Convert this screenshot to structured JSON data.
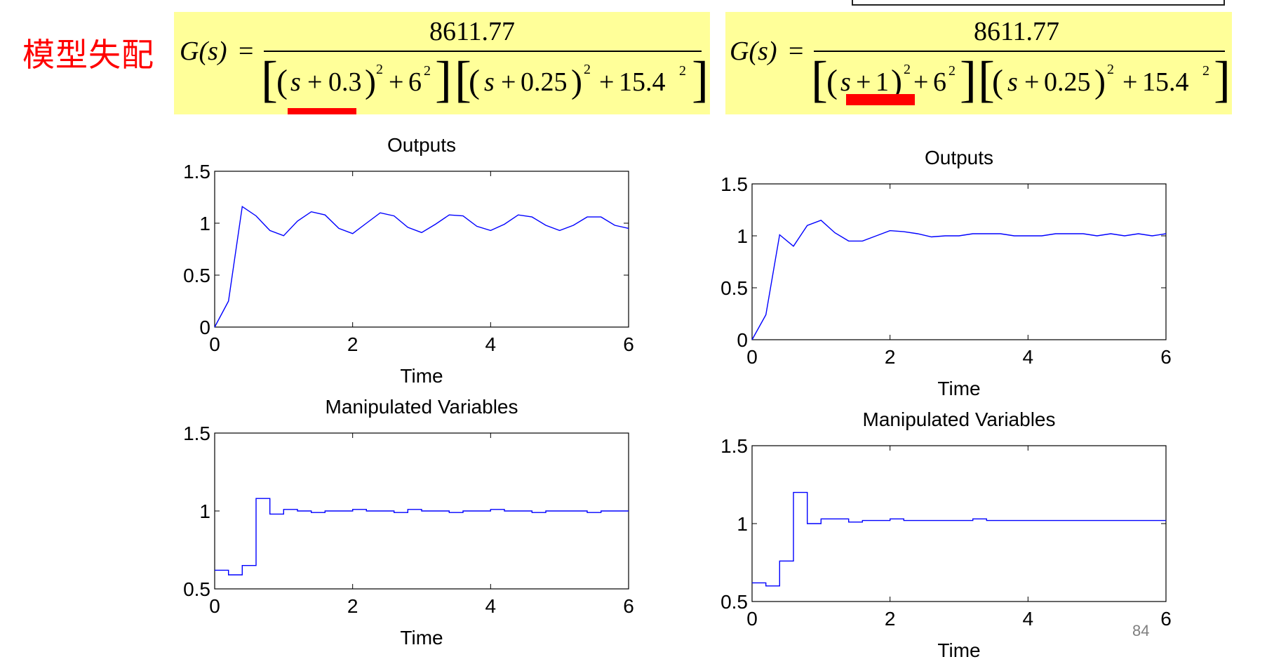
{
  "slide": {
    "title": "模型失配",
    "page_number": "84",
    "accent_color": "#ff0000",
    "formula_bg": "#ffff99",
    "line_color": "#0000ff"
  },
  "formulas": [
    {
      "lhs": "G(s)",
      "numerator": "8611.77",
      "factor1": {
        "constant": "0.3",
        "freq": "6"
      },
      "factor2": {
        "constant": "0.25",
        "freq": "15.4"
      },
      "exponent": "2",
      "highlight": "0.3"
    },
    {
      "lhs": "G(s)",
      "numerator": "8611.77",
      "factor1": {
        "constant": "1",
        "freq": "6"
      },
      "factor2": {
        "constant": "0.25",
        "freq": "15.4"
      },
      "exponent": "2",
      "highlight": "1"
    }
  ],
  "chart_data": [
    {
      "type": "line",
      "title": "Outputs",
      "xlabel": "Time",
      "ylabel": "",
      "xlim": [
        0,
        6
      ],
      "ylim": [
        0,
        1.5
      ],
      "xticks": [
        0,
        2,
        4,
        6
      ],
      "yticks": [
        0,
        0.5,
        1,
        1.5
      ],
      "grid": false,
      "series": [
        {
          "x": [
            0,
            0.2,
            0.4,
            0.6,
            0.8,
            1.0,
            1.2,
            1.4,
            1.6,
            1.8,
            2.0,
            2.2,
            2.4,
            2.6,
            2.8,
            3.0,
            3.2,
            3.4,
            3.6,
            3.8,
            4.0,
            4.2,
            4.4,
            4.6,
            4.8,
            5.0,
            5.2,
            5.4,
            5.6,
            5.8,
            6.0
          ],
          "y": [
            0,
            0.25,
            1.16,
            1.07,
            0.93,
            0.88,
            1.02,
            1.11,
            1.08,
            0.95,
            0.9,
            1.0,
            1.1,
            1.07,
            0.96,
            0.91,
            0.99,
            1.08,
            1.07,
            0.97,
            0.93,
            0.99,
            1.08,
            1.06,
            0.98,
            0.93,
            0.98,
            1.06,
            1.06,
            0.98,
            0.95
          ]
        }
      ]
    },
    {
      "type": "line",
      "title": "Manipulated Variables",
      "xlabel": "Time",
      "ylabel": "",
      "xlim": [
        0,
        6
      ],
      "ylim": [
        0.5,
        1.5
      ],
      "xticks": [
        0,
        2,
        4,
        6
      ],
      "yticks": [
        0.5,
        1,
        1.5
      ],
      "grid": false,
      "series": [
        {
          "step": true,
          "x": [
            0,
            0.2,
            0.4,
            0.6,
            0.8,
            1.0,
            1.2,
            1.4,
            1.6,
            1.8,
            2.0,
            2.2,
            2.4,
            2.6,
            2.8,
            3.0,
            3.2,
            3.4,
            3.6,
            3.8,
            4.0,
            4.2,
            4.4,
            4.6,
            4.8,
            5.0,
            5.2,
            5.4,
            5.6,
            5.8,
            6.0
          ],
          "y": [
            0.62,
            0.59,
            0.65,
            1.08,
            0.98,
            1.01,
            1.0,
            0.99,
            1.0,
            1.0,
            1.01,
            1.0,
            1.0,
            0.99,
            1.01,
            1.0,
            1.0,
            0.99,
            1.0,
            1.0,
            1.01,
            1.0,
            1.0,
            0.99,
            1.0,
            1.0,
            1.0,
            0.99,
            1.0,
            1.0,
            1.0
          ]
        }
      ]
    },
    {
      "type": "line",
      "title": "Outputs",
      "xlabel": "Time",
      "ylabel": "",
      "xlim": [
        0,
        6
      ],
      "ylim": [
        0,
        1.5
      ],
      "xticks": [
        0,
        2,
        4,
        6
      ],
      "yticks": [
        0,
        0.5,
        1,
        1.5
      ],
      "grid": false,
      "series": [
        {
          "x": [
            0,
            0.2,
            0.4,
            0.6,
            0.8,
            1.0,
            1.2,
            1.4,
            1.6,
            1.8,
            2.0,
            2.2,
            2.4,
            2.6,
            2.8,
            3.0,
            3.2,
            3.4,
            3.6,
            3.8,
            4.0,
            4.2,
            4.4,
            4.6,
            4.8,
            5.0,
            5.2,
            5.4,
            5.6,
            5.8,
            6.0
          ],
          "y": [
            0,
            0.24,
            1.01,
            0.9,
            1.1,
            1.15,
            1.03,
            0.95,
            0.95,
            1.0,
            1.05,
            1.04,
            1.02,
            0.99,
            1.0,
            1.0,
            1.02,
            1.02,
            1.02,
            1.0,
            1.0,
            1.0,
            1.02,
            1.02,
            1.02,
            1.0,
            1.02,
            1.0,
            1.02,
            1.0,
            1.02
          ]
        }
      ]
    },
    {
      "type": "line",
      "title": "Manipulated Variables",
      "xlabel": "Time",
      "ylabel": "",
      "xlim": [
        0,
        6
      ],
      "ylim": [
        0.5,
        1.5
      ],
      "xticks": [
        0,
        2,
        4,
        6
      ],
      "yticks": [
        0.5,
        1,
        1.5
      ],
      "grid": false,
      "series": [
        {
          "step": true,
          "x": [
            0,
            0.2,
            0.4,
            0.6,
            0.8,
            1.0,
            1.2,
            1.4,
            1.6,
            1.8,
            2.0,
            2.2,
            2.4,
            2.6,
            2.8,
            3.0,
            3.2,
            3.4,
            3.6,
            3.8,
            4.0,
            4.2,
            4.4,
            4.6,
            4.8,
            5.0,
            5.2,
            5.4,
            5.6,
            5.8,
            6.0
          ],
          "y": [
            0.62,
            0.6,
            0.76,
            1.2,
            1.0,
            1.03,
            1.03,
            1.01,
            1.02,
            1.02,
            1.03,
            1.02,
            1.02,
            1.02,
            1.02,
            1.02,
            1.03,
            1.02,
            1.02,
            1.02,
            1.02,
            1.02,
            1.02,
            1.02,
            1.02,
            1.02,
            1.02,
            1.02,
            1.02,
            1.02,
            1.02
          ]
        }
      ]
    }
  ]
}
